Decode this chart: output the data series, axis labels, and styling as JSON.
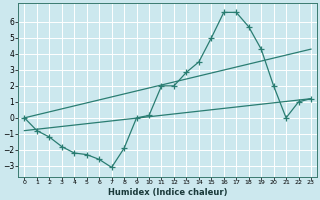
{
  "xlabel": "Humidex (Indice chaleur)",
  "bg_color": "#cce8ee",
  "grid_color": "#ffffff",
  "line_color": "#2a7d72",
  "xlim": [
    -0.5,
    23.5
  ],
  "ylim": [
    -3.7,
    7.2
  ],
  "yticks": [
    -3,
    -2,
    -1,
    0,
    1,
    2,
    3,
    4,
    5,
    6
  ],
  "xticks": [
    0,
    1,
    2,
    3,
    4,
    5,
    6,
    7,
    8,
    9,
    10,
    11,
    12,
    13,
    14,
    15,
    16,
    17,
    18,
    19,
    20,
    21,
    22,
    23
  ],
  "line1_x": [
    0,
    1,
    2,
    3,
    4,
    5,
    6,
    7,
    8,
    9,
    10,
    11,
    12,
    13,
    14,
    15,
    16,
    17,
    18,
    19,
    20,
    21,
    22,
    23
  ],
  "line1_y": [
    0.0,
    -0.8,
    -1.2,
    -1.8,
    -2.2,
    -2.3,
    -2.6,
    -3.1,
    -1.9,
    0.0,
    0.15,
    2.0,
    2.0,
    2.85,
    3.5,
    5.0,
    6.6,
    6.6,
    5.7,
    4.3,
    2.0,
    0.0,
    1.0,
    1.2
  ],
  "line2_x": [
    0,
    23
  ],
  "line2_y": [
    0.0,
    4.3
  ],
  "line3_x": [
    0,
    23
  ],
  "line3_y": [
    -0.8,
    1.2
  ]
}
